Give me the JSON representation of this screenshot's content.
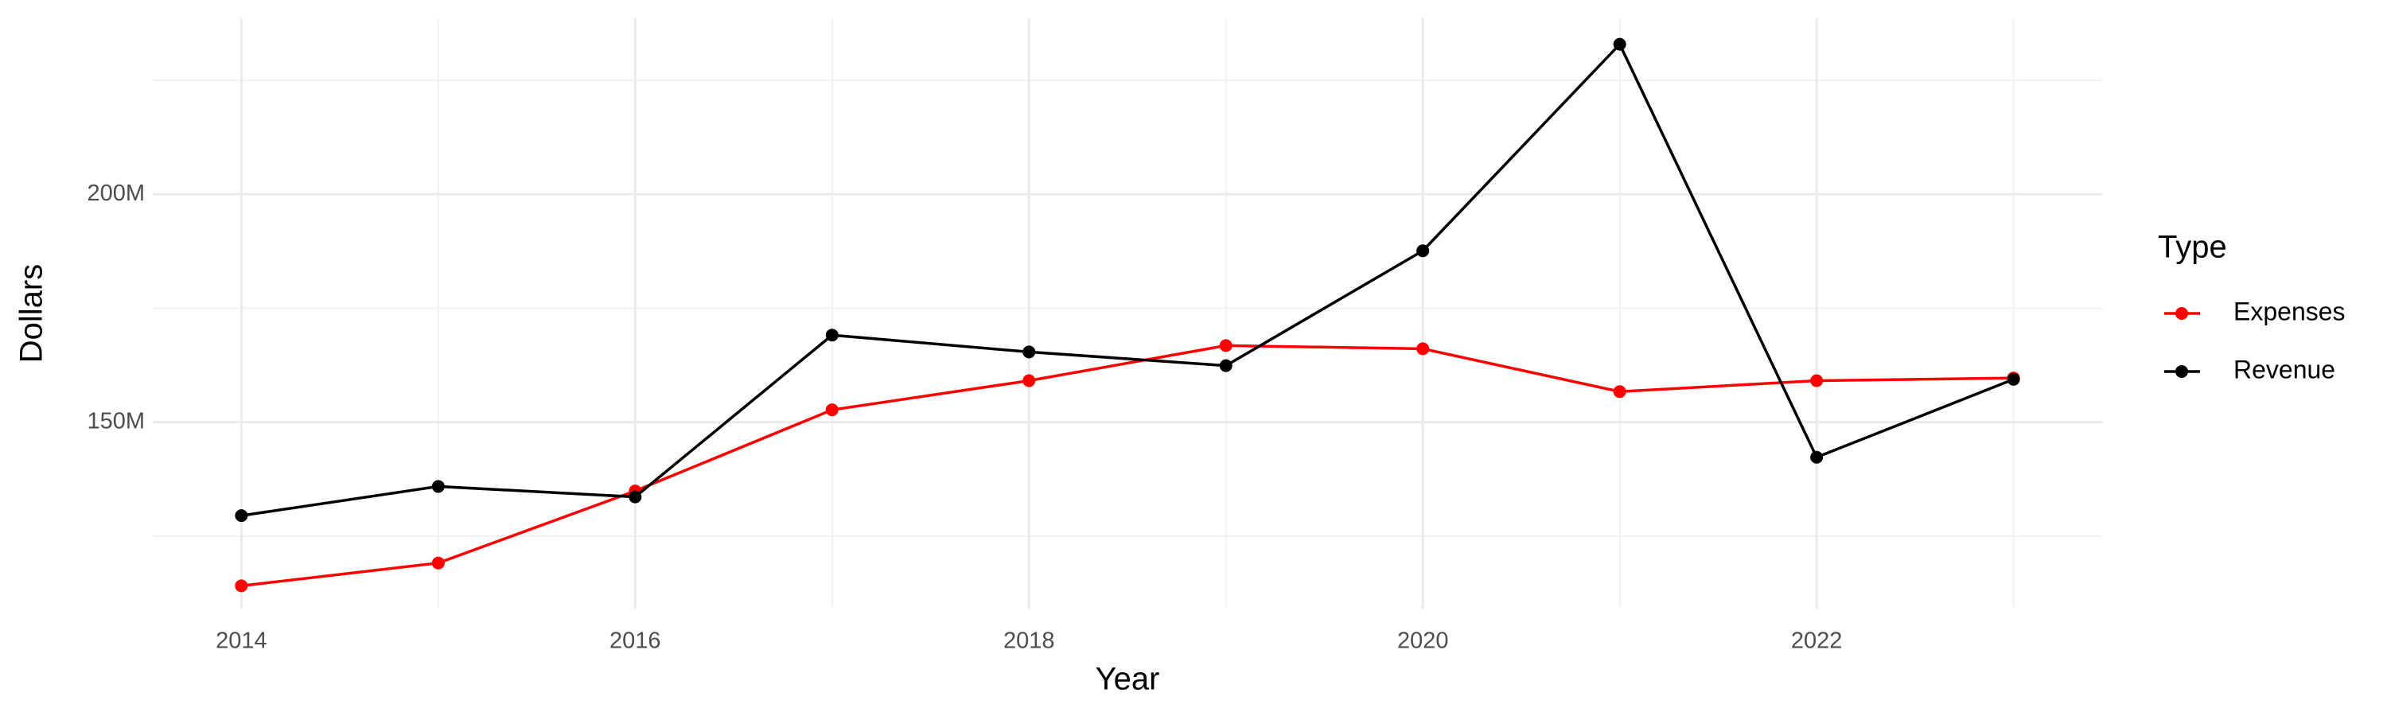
{
  "chart_data": {
    "type": "line",
    "x_label": "Year",
    "y_label": "Dollars",
    "legend_title": "Type",
    "x": [
      2014,
      2015,
      2016,
      2017,
      2018,
      2019,
      2020,
      2021,
      2022,
      2023
    ],
    "series": [
      {
        "name": "Expenses",
        "color": "#ff0000",
        "values": [
          114100000,
          119100000,
          134900000,
          152700000,
          159100000,
          166800000,
          166100000,
          156700000,
          159100000,
          159700000
        ]
      },
      {
        "name": "Revenue",
        "color": "#000000",
        "values": [
          129500000,
          135900000,
          133600000,
          169100000,
          165400000,
          162400000,
          187600000,
          232900000,
          142300000,
          159400000
        ]
      }
    ],
    "xlim": [
      2013.55,
      2023.45
    ],
    "xticks": [
      2014,
      2016,
      2018,
      2020,
      2022
    ],
    "ylim": [
      109100000,
      238600000
    ],
    "yticks": [
      {
        "value": 150000000,
        "label": "150M"
      },
      {
        "value": 200000000,
        "label": "200M"
      }
    ],
    "grid": true,
    "legend": "right"
  }
}
